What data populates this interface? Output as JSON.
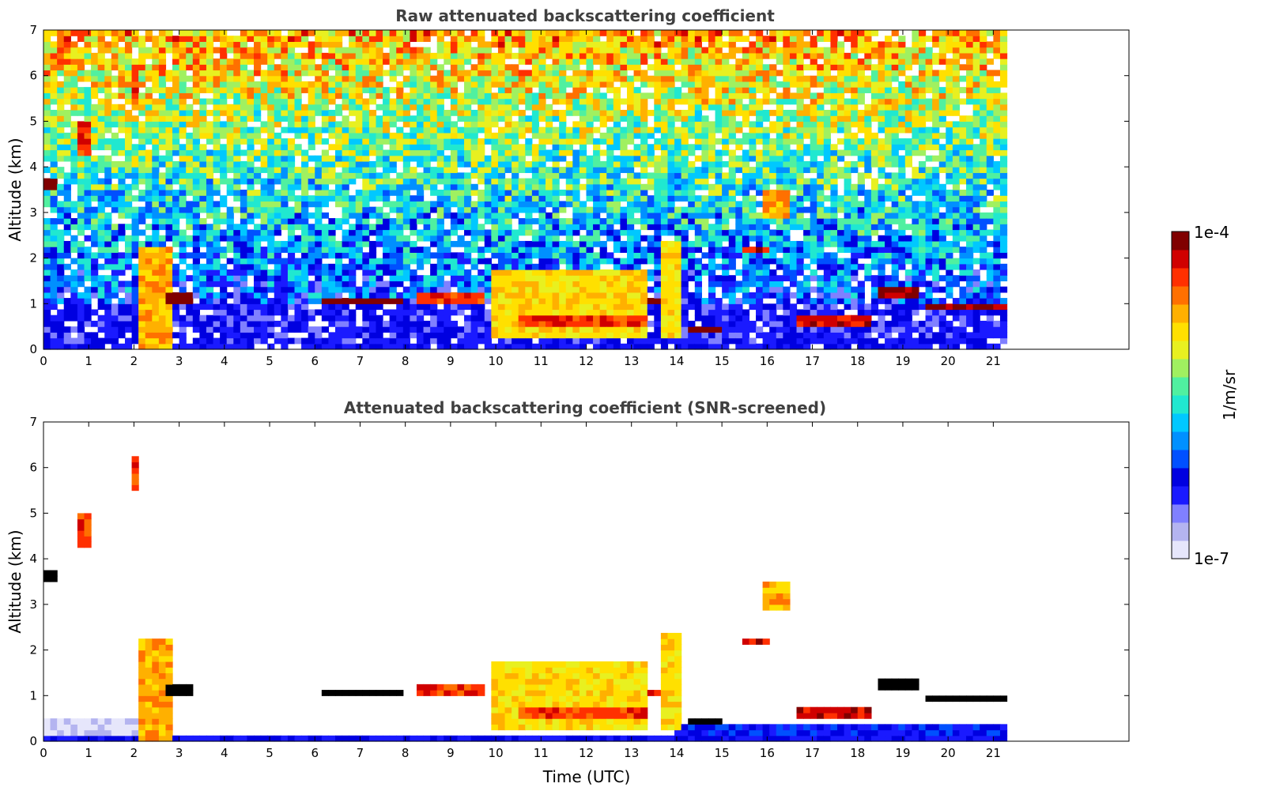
{
  "colors": {
    "scale": [
      "#e6e6fb",
      "#b4b4f0",
      "#8080ff",
      "#1a1aff",
      "#0000e0",
      "#0050ff",
      "#0090ff",
      "#00c8ff",
      "#20e8d0",
      "#50f0a0",
      "#a0f060",
      "#e8f020",
      "#ffe000",
      "#ffb000",
      "#ff7000",
      "#ff3000",
      "#d00000",
      "#800000"
    ],
    "saturated": "#000000"
  },
  "chart_data": [
    {
      "type": "heatmap",
      "title": "Raw attenuated backscattering coefficient",
      "xlabel": "",
      "ylabel": "Altitude (km)",
      "xlim": [
        0,
        24
      ],
      "ylim": [
        0,
        7
      ],
      "xticks": [
        "0",
        "1",
        "2",
        "3",
        "4",
        "5",
        "6",
        "7",
        "8",
        "9",
        "10",
        "11",
        "12",
        "13",
        "14",
        "15",
        "16",
        "17",
        "18",
        "19",
        "20",
        "21"
      ],
      "yticks": [
        "0",
        "1",
        "2",
        "3",
        "4",
        "5",
        "6",
        "7"
      ],
      "data_end_time": 21.3,
      "features": [
        {
          "t0": 2.1,
          "t1": 2.8,
          "z0": 0,
          "z1": 2.2,
          "level": 13
        },
        {
          "t0": 2.7,
          "t1": 3.3,
          "z0": 1.05,
          "z1": 1.25,
          "level": 17
        },
        {
          "t0": 6.2,
          "t1": 7.9,
          "z0": 0.95,
          "z1": 1.1,
          "level": 17
        },
        {
          "t0": 8.3,
          "t1": 9.7,
          "z0": 1.0,
          "z1": 1.3,
          "level": 15
        },
        {
          "t0": 9.9,
          "t1": 13.3,
          "z0": 0.3,
          "z1": 1.8,
          "level": 12
        },
        {
          "t0": 10.5,
          "t1": 13.3,
          "z0": 0.5,
          "z1": 0.7,
          "level": 15
        },
        {
          "t0": 13.3,
          "t1": 13.7,
          "z0": 1.0,
          "z1": 1.15,
          "level": 16
        },
        {
          "t0": 13.7,
          "t1": 14.1,
          "z0": 0.2,
          "z1": 2.4,
          "level": 12
        },
        {
          "t0": 14.3,
          "t1": 15.0,
          "z0": 0.35,
          "z1": 0.5,
          "level": 17
        },
        {
          "t0": 15.4,
          "t1": 16.1,
          "z0": 2.1,
          "z1": 2.3,
          "level": 16
        },
        {
          "t0": 15.9,
          "t1": 16.5,
          "z0": 2.9,
          "z1": 3.5,
          "level": 13
        },
        {
          "t0": 16.7,
          "t1": 18.3,
          "z0": 0.5,
          "z1": 0.8,
          "level": 16
        },
        {
          "t0": 18.5,
          "t1": 19.3,
          "z0": 1.1,
          "z1": 1.4,
          "level": 17
        },
        {
          "t0": 19.5,
          "t1": 21.3,
          "z0": 0.85,
          "z1": 1.0,
          "level": 17
        },
        {
          "t0": 0.7,
          "t1": 1.0,
          "z0": 4.3,
          "z1": 5.0,
          "level": 15
        },
        {
          "t0": 0.0,
          "t1": 0.3,
          "z0": 3.5,
          "z1": 3.7,
          "level": 17
        },
        {
          "t0": 1.9,
          "t1": 2.1,
          "z0": 5.5,
          "z1": 6.3,
          "level": 15
        }
      ]
    },
    {
      "type": "heatmap",
      "title": "Attenuated backscattering coefficient (SNR-screened)",
      "xlabel": "Time (UTC)",
      "ylabel": "Altitude (km)",
      "xlim": [
        0,
        24
      ],
      "ylim": [
        0,
        7
      ],
      "xticks": [
        "0",
        "1",
        "2",
        "3",
        "4",
        "5",
        "6",
        "7",
        "8",
        "9",
        "10",
        "11",
        "12",
        "13",
        "14",
        "15",
        "16",
        "17",
        "18",
        "19",
        "20",
        "21"
      ],
      "yticks": [
        "0",
        "1",
        "2",
        "3",
        "4",
        "5",
        "6",
        "7"
      ],
      "data_end_time": 21.3
    }
  ],
  "colorbar": {
    "label": "1/m/sr",
    "max_label": "1e-4",
    "min_label": "1e-7",
    "scale": "log",
    "range": [
      1e-07,
      0.0001
    ]
  }
}
